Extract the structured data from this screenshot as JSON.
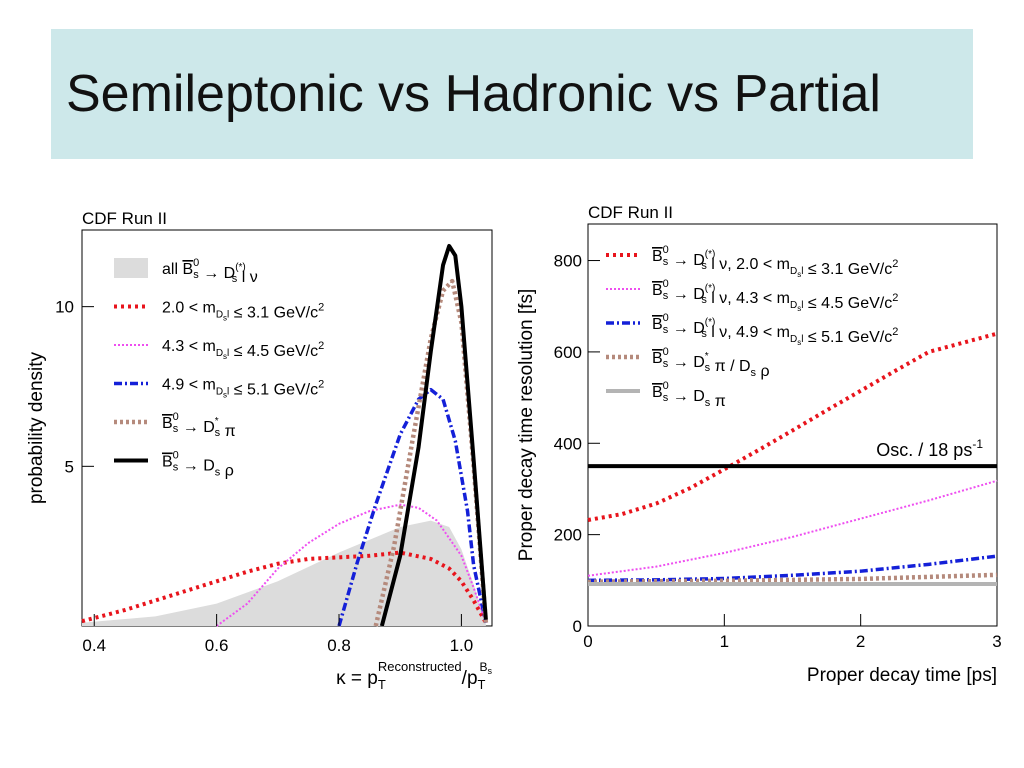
{
  "slide": {
    "title": "Semileptonic vs Hadronic vs Partial"
  },
  "chart_data": [
    {
      "type": "line",
      "annotation": "CDF Run II",
      "xlabel": {
        "main": "κ = p",
        "sub1": "T",
        "sup1": "Reconstructed",
        "slash": "/p",
        "sub2": "T",
        "sup2": "B",
        "sup2sub": "s"
      },
      "ylabel": "probability density",
      "xlim": [
        0.38,
        1.05
      ],
      "ylim": [
        0,
        12.4
      ],
      "xticks": [
        "0.4",
        "0.6",
        "0.8",
        "1.0"
      ],
      "xtick_values": [
        0.4,
        0.6,
        0.8,
        1.0
      ],
      "yticks": [
        "5",
        "10"
      ],
      "ytick_values": [
        5,
        10
      ],
      "legend_placement": "top-left",
      "legend": [
        {
          "style": "fill",
          "color": "#dcdcdc",
          "parts": [
            "all ",
            "B",
            "0",
            "s",
            " → D",
            "(*)",
            "s",
            " l ν"
          ]
        },
        {
          "style": "red-dot",
          "color": "#e8141c",
          "parts": [
            "2.0 < m",
            "D",
            "s",
            "l",
            " ≤ 3.1 GeV/c",
            "2"
          ]
        },
        {
          "style": "magenta-dot",
          "color": "#ee4ef0",
          "parts": [
            "4.3 < m",
            "D",
            "s",
            "l",
            " ≤ 4.5 GeV/c",
            "2"
          ]
        },
        {
          "style": "blue-dashdot",
          "color": "#1420d8",
          "parts": [
            "4.9 < m",
            "D",
            "s",
            "l",
            " ≤ 5.1 GeV/c",
            "2"
          ]
        },
        {
          "style": "brown-dot",
          "color": "#b58a7c",
          "parts": [
            "B",
            "0",
            "s",
            " → D",
            "*",
            "s",
            " π"
          ]
        },
        {
          "style": "black-solid",
          "color": "#000000",
          "parts": [
            "B",
            "0",
            "s",
            " → D",
            "s",
            " ρ"
          ]
        }
      ],
      "series": [
        {
          "name": "all B0s → D(*)s l ν",
          "style": "fill",
          "x": [
            0.38,
            0.5,
            0.6,
            0.7,
            0.8,
            0.85,
            0.9,
            0.95,
            0.98,
            1.0,
            1.02,
            1.04
          ],
          "y": [
            0.1,
            0.3,
            0.7,
            1.4,
            2.3,
            2.7,
            3.1,
            3.3,
            3.1,
            2.4,
            1.3,
            0.1
          ]
        },
        {
          "name": "2.0 < mDsl ≤ 3.1 GeV/c2",
          "style": "red-dot",
          "x": [
            0.38,
            0.45,
            0.5,
            0.55,
            0.6,
            0.65,
            0.7,
            0.75,
            0.8,
            0.85,
            0.9,
            0.95,
            0.98,
            1.0,
            1.02,
            1.04
          ],
          "y": [
            0.15,
            0.5,
            0.8,
            1.1,
            1.4,
            1.7,
            1.95,
            2.1,
            2.15,
            2.2,
            2.3,
            2.1,
            1.8,
            1.4,
            0.8,
            0.1
          ]
        },
        {
          "name": "4.3 < mDsl ≤ 4.5 GeV/c2",
          "style": "magenta-dot",
          "x": [
            0.6,
            0.65,
            0.7,
            0.75,
            0.8,
            0.85,
            0.9,
            0.93,
            0.96,
            1.0,
            1.02,
            1.04
          ],
          "y": [
            0,
            0.7,
            1.8,
            2.6,
            3.2,
            3.6,
            3.8,
            3.7,
            3.3,
            2.2,
            1.2,
            0.1
          ]
        },
        {
          "name": "4.9 < mDsl ≤ 5.1 GeV/c2",
          "style": "blue-dashdot",
          "x": [
            0.8,
            0.83,
            0.86,
            0.9,
            0.93,
            0.95,
            0.97,
            0.99,
            1.01,
            1.02,
            1.04
          ],
          "y": [
            0,
            2.0,
            3.8,
            6.0,
            7.1,
            7.4,
            7.1,
            5.8,
            3.6,
            1.9,
            0.1
          ]
        },
        {
          "name": "B0s → D*s π",
          "style": "brown-dot",
          "x": [
            0.86,
            0.89,
            0.92,
            0.95,
            0.97,
            0.985,
            1.0,
            1.02,
            1.04
          ],
          "y": [
            0,
            2.5,
            5.8,
            9.0,
            10.5,
            10.8,
            9.5,
            5.0,
            0.1
          ]
        },
        {
          "name": "B0s → Ds ρ",
          "style": "black-solid",
          "x": [
            0.87,
            0.9,
            0.93,
            0.95,
            0.97,
            0.98,
            0.99,
            1.0,
            1.02,
            1.04
          ],
          "y": [
            0,
            2.2,
            5.6,
            8.6,
            11.3,
            11.9,
            11.6,
            10.0,
            5.2,
            0.2
          ]
        }
      ]
    },
    {
      "type": "line",
      "annotation": "CDF Run II",
      "xlabel": "Proper decay time [ps]",
      "ylabel": "Proper decay time resolution [fs]",
      "xlim": [
        0,
        3
      ],
      "ylim": [
        0,
        880
      ],
      "xticks": [
        "0",
        "1",
        "2",
        "3"
      ],
      "xtick_values": [
        0,
        1,
        2,
        3
      ],
      "yticks": [
        "0",
        "200",
        "400",
        "600",
        "800"
      ],
      "ytick_values": [
        0,
        200,
        400,
        600,
        800
      ],
      "legend_placement": "top-left",
      "osc_label": {
        "main": "Osc. / 18 ps",
        "sup": "-1"
      },
      "legend": [
        {
          "style": "red-dot",
          "color": "#e8141c",
          "parts": [
            "B",
            "0",
            "s",
            " → D",
            "(*)",
            "s",
            " l ν, 2.0 < m",
            "D",
            "s",
            "l",
            " ≤ 3.1 GeV/c",
            "2"
          ]
        },
        {
          "style": "magenta-dot",
          "color": "#ee4ef0",
          "parts": [
            "B",
            "0",
            "s",
            " → D",
            "(*)",
            "s",
            " l ν, 4.3 < m",
            "D",
            "s",
            "l",
            " ≤ 4.5 GeV/c",
            "2"
          ]
        },
        {
          "style": "blue-dashdot",
          "color": "#1420d8",
          "parts": [
            "B",
            "0",
            "s",
            " → D",
            "(*)",
            "s",
            " l ν, 4.9 < m",
            "D",
            "s",
            "l",
            " ≤ 5.1 GeV/c",
            "2"
          ]
        },
        {
          "style": "brown-dot",
          "color": "#b58a7c",
          "parts": [
            "B",
            "0",
            "s",
            " → D",
            "*",
            "s",
            " π / D",
            "s",
            " ρ"
          ]
        },
        {
          "style": "grey-solid",
          "color": "#b4b4b4",
          "parts": [
            "B",
            "0",
            "s",
            " → D",
            "s",
            " π"
          ]
        }
      ],
      "series": [
        {
          "name": "B0s → D(*)s l ν, 2.0 < mDsl ≤ 3.1 GeV/c2",
          "style": "red-dot",
          "x": [
            0,
            0.25,
            0.5,
            0.75,
            1.0,
            1.25,
            1.5,
            1.75,
            2.0,
            2.25,
            2.5,
            2.75,
            3.0
          ],
          "y": [
            232,
            245,
            268,
            302,
            343,
            385,
            428,
            472,
            515,
            558,
            600,
            620,
            640
          ]
        },
        {
          "name": "B0s → D(*)s l ν, 4.3 < mDsl ≤ 4.5 GeV/c2",
          "style": "magenta-dot",
          "x": [
            0,
            0.5,
            1.0,
            1.5,
            2.0,
            2.5,
            3.0
          ],
          "y": [
            110,
            130,
            160,
            195,
            235,
            275,
            318
          ]
        },
        {
          "name": "B0s → D(*)s l ν, 4.9 < mDsl ≤ 5.1 GeV/c2",
          "style": "blue-dashdot",
          "x": [
            0,
            0.5,
            1.0,
            1.5,
            2.0,
            2.5,
            3.0
          ],
          "y": [
            100,
            101,
            104,
            111,
            120,
            135,
            153
          ]
        },
        {
          "name": "B0s → D*s π / Ds ρ",
          "style": "brown-dot",
          "x": [
            0,
            1.0,
            2.0,
            3.0
          ],
          "y": [
            97,
            99,
            103,
            112
          ]
        },
        {
          "name": "B0s → Ds π",
          "style": "grey-solid",
          "x": [
            0,
            3.0
          ],
          "y": [
            92,
            92
          ]
        },
        {
          "name": "Osc. / 18 ps-1",
          "style": "black-solid",
          "x": [
            0,
            3.0
          ],
          "y": [
            350,
            350
          ]
        }
      ]
    }
  ]
}
